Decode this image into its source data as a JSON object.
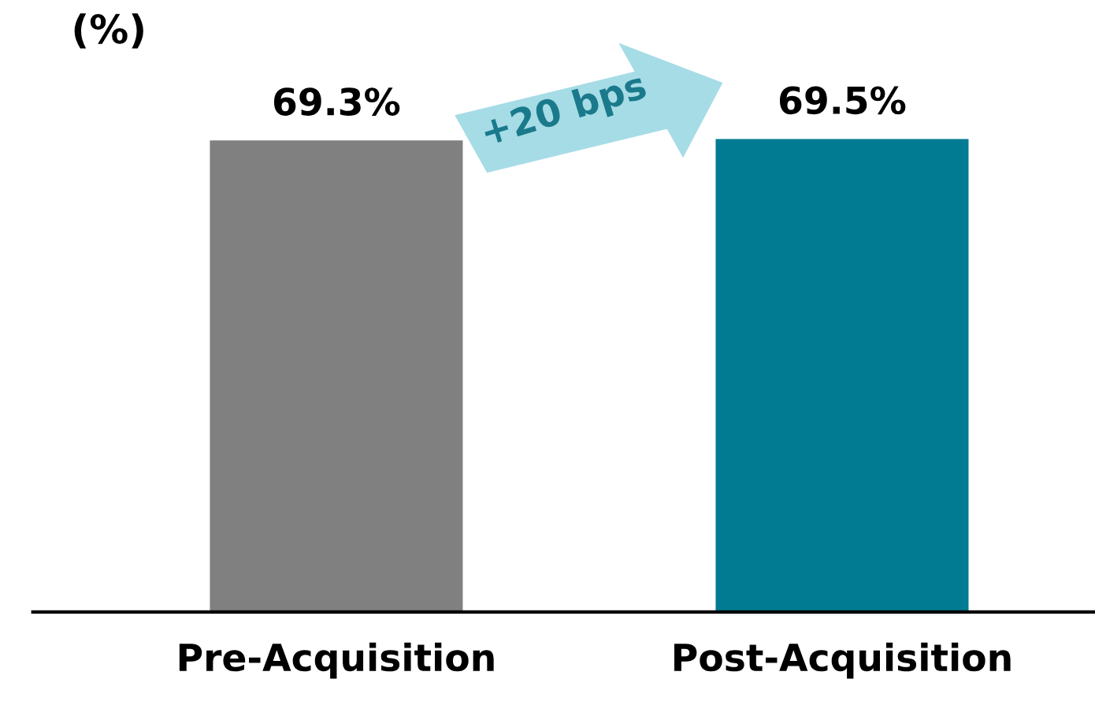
{
  "chart_data": {
    "type": "bar",
    "title": "(%)",
    "categories": [
      "Pre-Acquisition",
      "Post-Acquisition"
    ],
    "values": [
      69.3,
      69.5
    ],
    "colors": [
      "#808080",
      "#007b91"
    ],
    "value_labels": [
      "69.3%",
      "69.5%"
    ],
    "annotations": [
      "+20 bps"
    ],
    "grid": false,
    "legend": false
  }
}
